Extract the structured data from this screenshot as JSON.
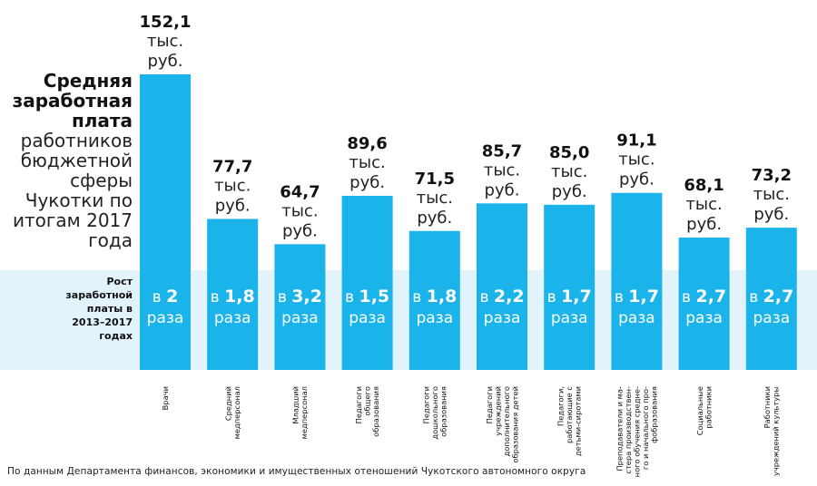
{
  "title": {
    "bold_lines": [
      "Средняя",
      "заработная",
      "плата"
    ],
    "regular_lines": [
      "работников",
      "бюджетной",
      "сферы",
      "Чукотки по",
      "итогам 2017",
      "года"
    ]
  },
  "growth_label_lines": [
    "Рост",
    "заработной",
    "платы в",
    "2013–2017",
    "годах"
  ],
  "source": "По данным Департамента финансов, экономики и имущественных отеношений Чукотского автономного округа",
  "colors": {
    "bar": "#1AB3EA",
    "band": "#E3F3FB",
    "text": "#111111",
    "bar_text": "#ffffff"
  },
  "chart_data": {
    "type": "bar",
    "unit_lines": [
      "тыс.",
      "руб."
    ],
    "growth_prefix": "в",
    "growth_suffix": "раза",
    "ylim": [
      0,
      160
    ],
    "categories": [
      [
        "Врачи"
      ],
      [
        "Средний",
        "медперсонал"
      ],
      [
        "Младший",
        "медперсонал"
      ],
      [
        "Педагоги",
        "общего",
        "образования"
      ],
      [
        "Педагоги",
        "дошкольного",
        "образования"
      ],
      [
        "Педагоги",
        "учреждений",
        "дополнительного",
        "образования детей"
      ],
      [
        "Педагоги,",
        "работающие с",
        "детьми-сиротами"
      ],
      [
        "Преподаватели и ма-",
        "стера производствен-",
        "ного обучения средне-",
        "го и начального про-",
        "фобразования"
      ],
      [
        "Социальные",
        "работники"
      ],
      [
        "Работники",
        "учреждений культуры"
      ]
    ],
    "values": [
      152.1,
      77.7,
      64.7,
      89.6,
      71.5,
      85.7,
      85.0,
      91.1,
      68.1,
      73.2
    ],
    "value_labels": [
      "152,1",
      "77,7",
      "64,7",
      "89,6",
      "71,5",
      "85,7",
      "85,0",
      "91,1",
      "68,1",
      "73,2"
    ],
    "growth": [
      "2",
      "1,8",
      "3,2",
      "1,5",
      "1,8",
      "2,2",
      "1,7",
      "1,7",
      "2,7",
      "2,7"
    ]
  }
}
